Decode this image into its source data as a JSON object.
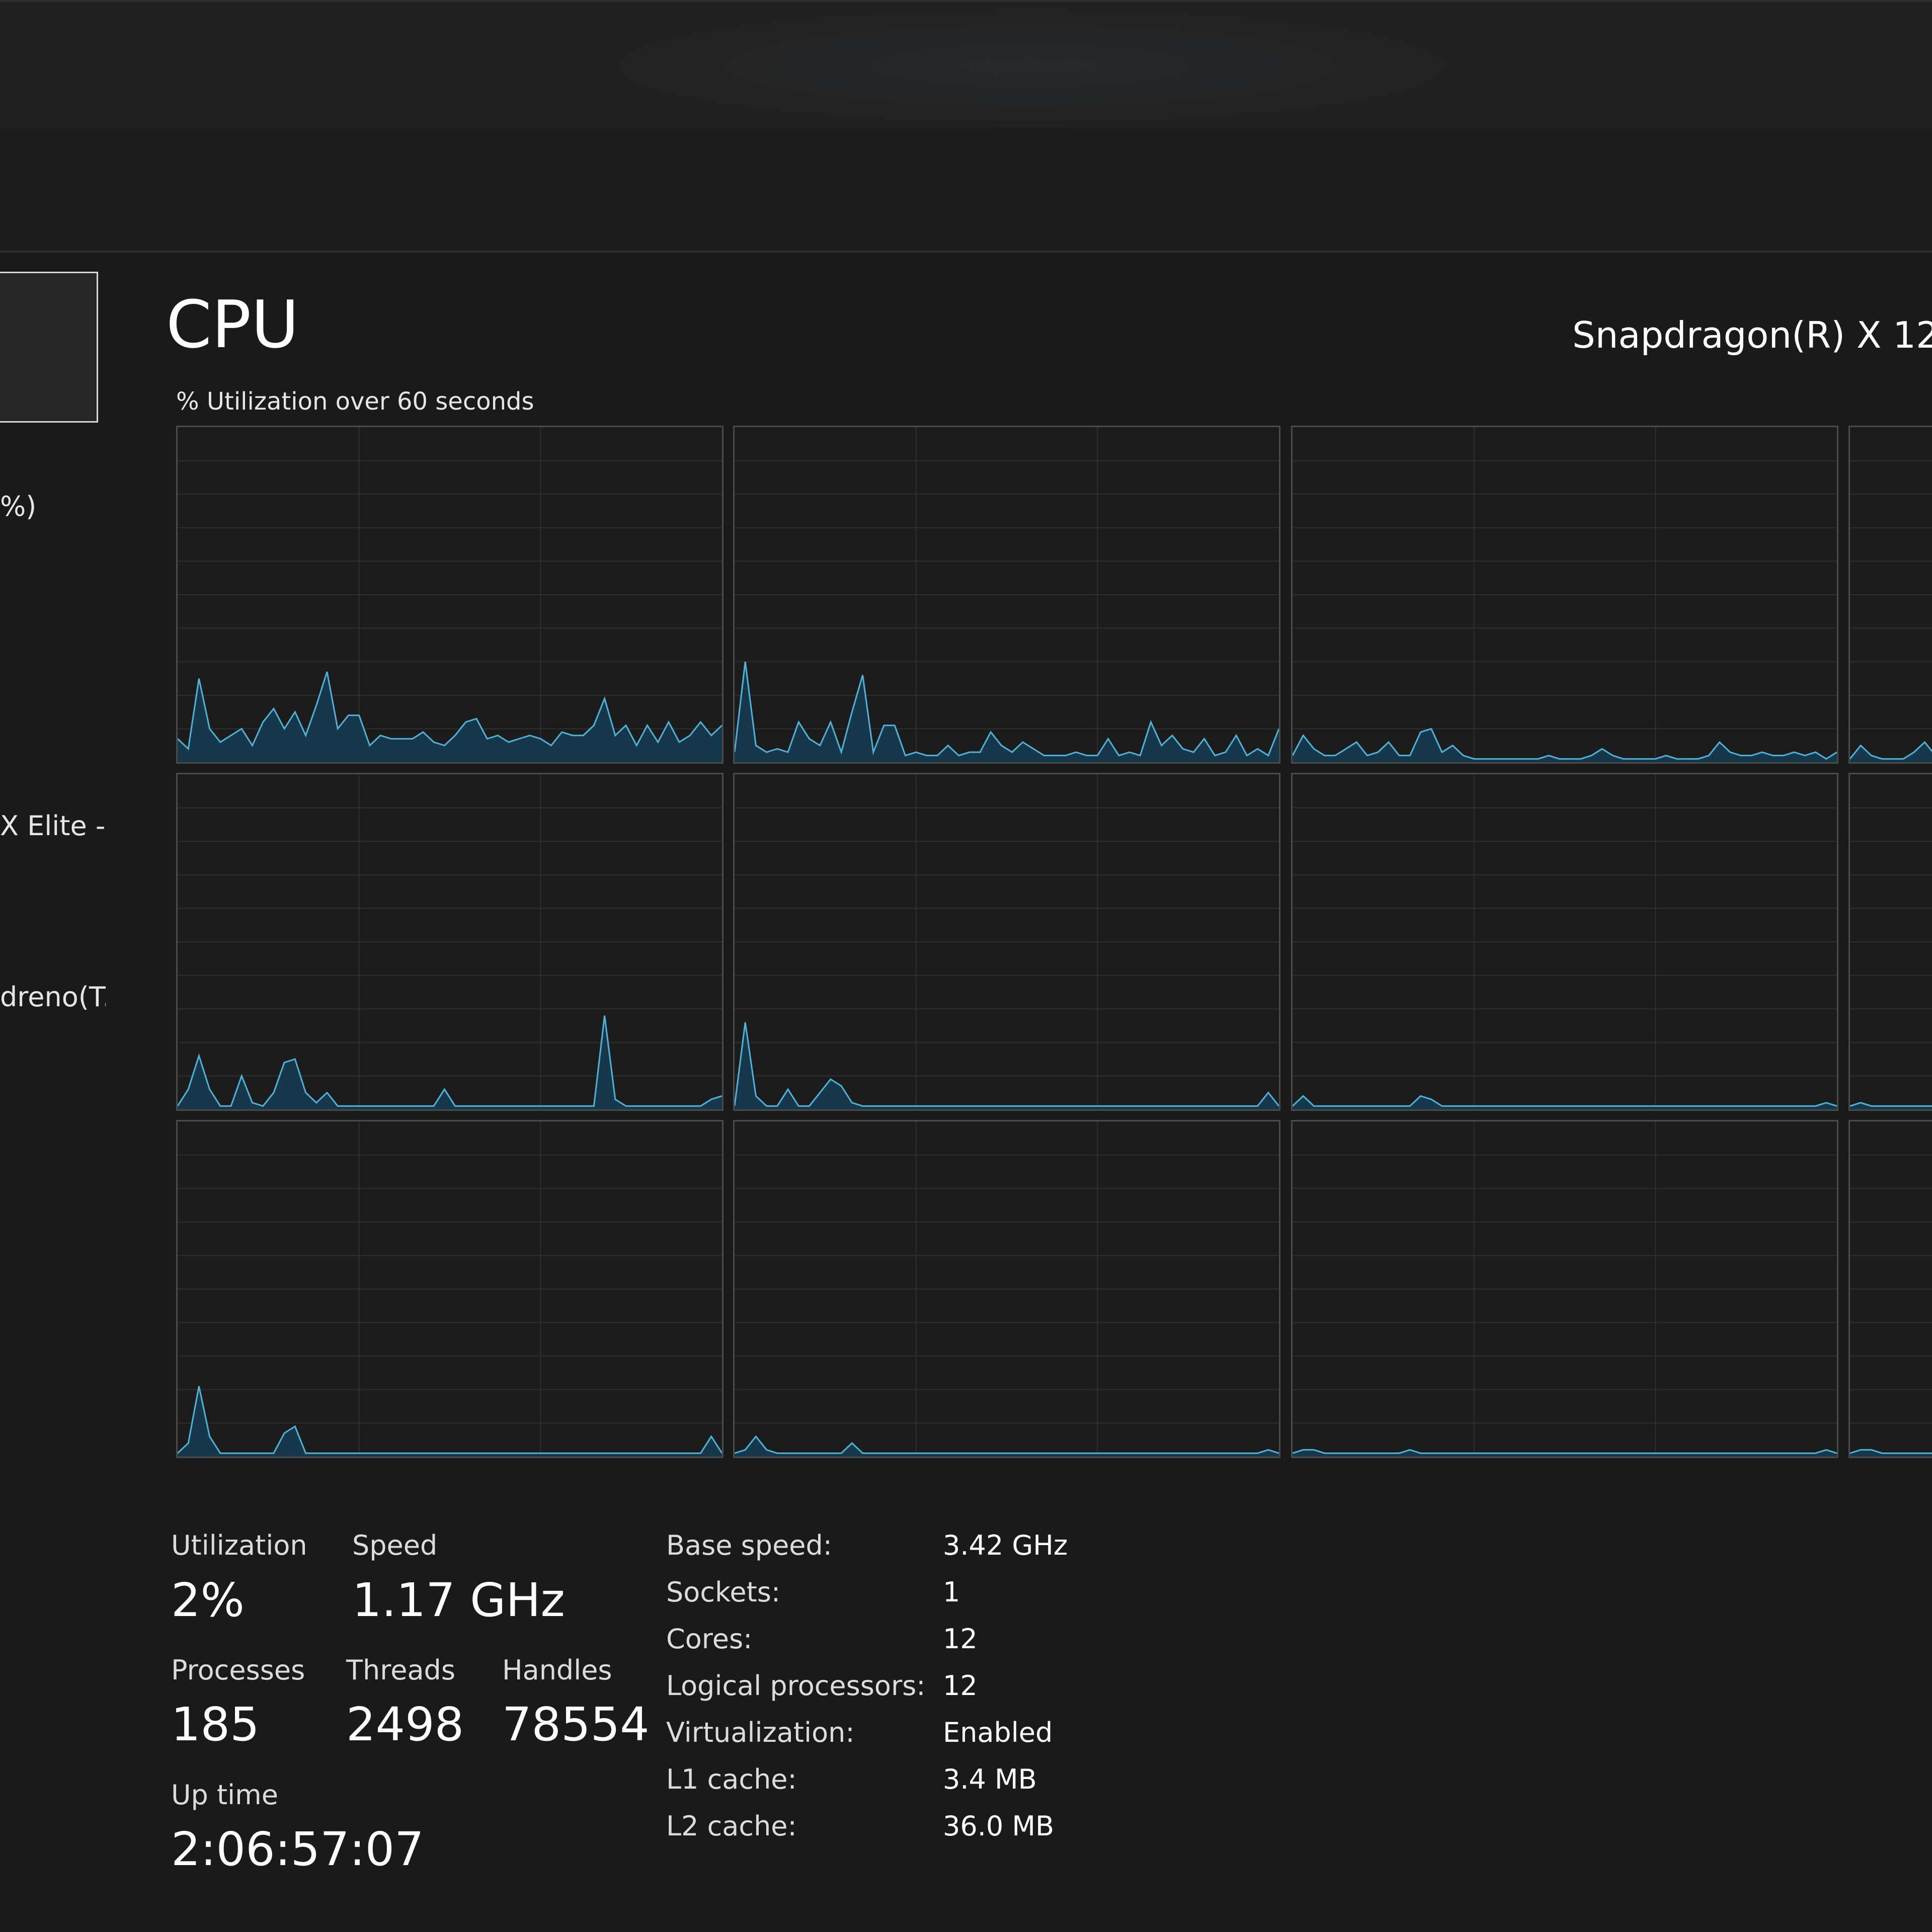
{
  "sidebar": {
    "items": [
      {
        "text": "%)"
      },
      {
        "text": "X Elite -"
      },
      {
        "text": "dreno(T."
      }
    ]
  },
  "header": {
    "title": "CPU",
    "processor_name": "Snapdragon(R) X 12-",
    "graph_caption": "% Utilization over 60 seconds"
  },
  "colors": {
    "line": "#4fb3d9",
    "fill": "#17384a",
    "grid": "#2f2f2f",
    "border": "#4a4a4a",
    "background": "#1a1a1a"
  },
  "chart_data": {
    "type": "area",
    "title": "% Utilization over 60 seconds",
    "ylim": [
      0,
      100
    ],
    "grid": true,
    "series": [
      {
        "values": [
          7,
          4,
          25,
          10,
          6,
          8,
          10,
          5,
          12,
          16,
          10,
          15,
          8,
          17,
          27,
          10,
          14,
          14,
          5,
          8,
          7,
          7,
          7,
          9,
          6,
          5,
          8,
          12,
          13,
          7,
          8,
          6,
          7,
          8,
          7,
          5,
          9,
          8,
          8,
          11,
          19,
          8,
          11,
          5,
          11,
          6,
          12,
          6,
          8,
          12,
          8,
          11
        ]
      },
      {
        "values": [
          3,
          30,
          5,
          3,
          4,
          3,
          12,
          7,
          5,
          12,
          3,
          15,
          26,
          3,
          11,
          11,
          2,
          3,
          2,
          2,
          5,
          2,
          3,
          3,
          9,
          5,
          3,
          6,
          4,
          2,
          2,
          2,
          3,
          2,
          2,
          7,
          2,
          3,
          2,
          12,
          5,
          8,
          4,
          3,
          7,
          2,
          3,
          8,
          2,
          4,
          2,
          10
        ]
      },
      {
        "values": [
          2,
          8,
          4,
          2,
          2,
          4,
          6,
          2,
          3,
          6,
          2,
          2,
          9,
          10,
          3,
          5,
          2,
          1,
          1,
          1,
          1,
          1,
          1,
          1,
          2,
          1,
          1,
          1,
          2,
          4,
          2,
          1,
          1,
          1,
          1,
          2,
          1,
          1,
          1,
          2,
          6,
          3,
          2,
          2,
          3,
          2,
          2,
          3,
          2,
          3,
          1,
          3
        ]
      },
      {
        "values": [
          1,
          5,
          2,
          1,
          1,
          1,
          3,
          6,
          2,
          1
        ]
      },
      {
        "values": [
          1,
          6,
          16,
          6,
          1,
          1,
          10,
          2,
          1,
          5,
          14,
          15,
          5,
          2,
          5,
          1,
          1,
          1,
          1,
          1,
          1,
          1,
          1,
          1,
          1,
          6,
          1,
          1,
          1,
          1,
          1,
          1,
          1,
          1,
          1,
          1,
          1,
          1,
          1,
          1,
          28,
          3,
          1,
          1,
          1,
          1,
          1,
          1,
          1,
          1,
          3,
          4
        ]
      },
      {
        "values": [
          1,
          26,
          4,
          1,
          1,
          6,
          1,
          1,
          5,
          9,
          7,
          2,
          1,
          1,
          1,
          1,
          1,
          1,
          1,
          1,
          1,
          1,
          1,
          1,
          1,
          1,
          1,
          1,
          1,
          1,
          1,
          1,
          1,
          1,
          1,
          1,
          1,
          1,
          1,
          1,
          1,
          1,
          1,
          1,
          1,
          1,
          1,
          1,
          1,
          1,
          5,
          1
        ]
      },
      {
        "values": [
          1,
          4,
          1,
          1,
          1,
          1,
          1,
          1,
          1,
          1,
          1,
          1,
          4,
          3,
          1,
          1,
          1,
          1,
          1,
          1,
          1,
          1,
          1,
          1,
          1,
          1,
          1,
          1,
          1,
          1,
          1,
          1,
          1,
          1,
          1,
          1,
          1,
          1,
          1,
          1,
          1,
          1,
          1,
          1,
          1,
          1,
          1,
          1,
          1,
          1,
          2,
          1
        ]
      },
      {
        "values": [
          1,
          2,
          1,
          1,
          1,
          1,
          1,
          1,
          1,
          1
        ]
      },
      {
        "values": [
          1,
          4,
          21,
          6,
          1,
          1,
          1,
          1,
          1,
          1,
          7,
          9,
          1,
          1,
          1,
          1,
          1,
          1,
          1,
          1,
          1,
          1,
          1,
          1,
          1,
          1,
          1,
          1,
          1,
          1,
          1,
          1,
          1,
          1,
          1,
          1,
          1,
          1,
          1,
          1,
          1,
          1,
          1,
          1,
          1,
          1,
          1,
          1,
          1,
          1,
          6,
          1
        ]
      },
      {
        "values": [
          1,
          2,
          6,
          2,
          1,
          1,
          1,
          1,
          1,
          1,
          1,
          4,
          1,
          1,
          1,
          1,
          1,
          1,
          1,
          1,
          1,
          1,
          1,
          1,
          1,
          1,
          1,
          1,
          1,
          1,
          1,
          1,
          1,
          1,
          1,
          1,
          1,
          1,
          1,
          1,
          1,
          1,
          1,
          1,
          1,
          1,
          1,
          1,
          1,
          1,
          2,
          1
        ]
      },
      {
        "values": [
          1,
          2,
          2,
          1,
          1,
          1,
          1,
          1,
          1,
          1,
          1,
          2,
          1,
          1,
          1,
          1,
          1,
          1,
          1,
          1,
          1,
          1,
          1,
          1,
          1,
          1,
          1,
          1,
          1,
          1,
          1,
          1,
          1,
          1,
          1,
          1,
          1,
          1,
          1,
          1,
          1,
          1,
          1,
          1,
          1,
          1,
          1,
          1,
          1,
          1,
          2,
          1
        ]
      },
      {
        "values": [
          1,
          2,
          2,
          1,
          1,
          1,
          1,
          1,
          1,
          1
        ]
      }
    ]
  },
  "stats": {
    "utilization": {
      "label": "Utilization",
      "value": "2%"
    },
    "speed": {
      "label": "Speed",
      "value": "1.17 GHz"
    },
    "processes": {
      "label": "Processes",
      "value": "185"
    },
    "threads": {
      "label": "Threads",
      "value": "2498"
    },
    "handles": {
      "label": "Handles",
      "value": "78554"
    },
    "uptime": {
      "label": "Up time",
      "value": "2:06:57:07"
    }
  },
  "specs": [
    {
      "label": "Base speed:",
      "value": "3.42 GHz"
    },
    {
      "label": "Sockets:",
      "value": "1"
    },
    {
      "label": "Cores:",
      "value": "12"
    },
    {
      "label": "Logical processors:",
      "value": "12"
    },
    {
      "label": "Virtualization:",
      "value": "Enabled"
    },
    {
      "label": "L1 cache:",
      "value": "3.4 MB"
    },
    {
      "label": "L2 cache:",
      "value": "36.0 MB"
    }
  ]
}
